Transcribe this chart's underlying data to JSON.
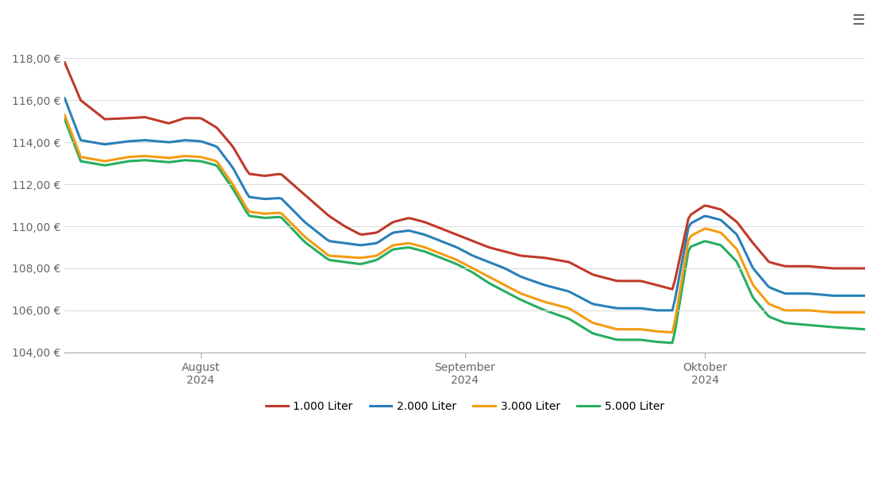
{
  "colors": {
    "1000": "#c0392b",
    "2000": "#2980b9",
    "3000": "#f39c12",
    "5000": "#27ae60"
  },
  "legend_labels": [
    "1.000 Liter",
    "2.000 Liter",
    "3.000 Liter",
    "5.000 Liter"
  ],
  "ylim": [
    104,
    119
  ],
  "yticks": [
    104,
    106,
    108,
    110,
    112,
    114,
    116,
    118
  ],
  "xtick_labels": [
    "August\n2024",
    "September\n2024",
    "Oktober\n2024"
  ],
  "xtick_positions": [
    0.17,
    0.5,
    0.8
  ],
  "background_color": "#ffffff",
  "grid_color": "#dddddd",
  "axis_color": "#aaaaaa",
  "line_width": 2.2,
  "series_1000": {
    "px": [
      0.0,
      0.02,
      0.05,
      0.08,
      0.1,
      0.13,
      0.15,
      0.17,
      0.19,
      0.21,
      0.23,
      0.25,
      0.27,
      0.3,
      0.33,
      0.35,
      0.37,
      0.39,
      0.41,
      0.43,
      0.45,
      0.47,
      0.49,
      0.51,
      0.53,
      0.55,
      0.57,
      0.6,
      0.63,
      0.66,
      0.69,
      0.72,
      0.74,
      0.76,
      0.78,
      0.8,
      0.82,
      0.84,
      0.86,
      0.88,
      0.9,
      0.93,
      0.96,
      1.0
    ],
    "py": [
      117.8,
      116.0,
      115.1,
      115.15,
      115.2,
      114.9,
      115.15,
      115.15,
      114.7,
      113.8,
      112.5,
      112.4,
      112.5,
      111.5,
      110.5,
      110.0,
      109.6,
      109.7,
      110.2,
      110.4,
      110.2,
      109.9,
      109.6,
      109.3,
      109.0,
      108.8,
      108.6,
      108.5,
      108.3,
      107.7,
      107.4,
      107.4,
      107.2,
      107.0,
      110.5,
      111.0,
      110.8,
      110.2,
      109.2,
      108.3,
      108.1,
      108.1,
      108.0,
      108.0
    ]
  },
  "series_2000": {
    "px": [
      0.0,
      0.02,
      0.05,
      0.08,
      0.1,
      0.13,
      0.15,
      0.17,
      0.19,
      0.21,
      0.23,
      0.25,
      0.27,
      0.3,
      0.33,
      0.35,
      0.37,
      0.39,
      0.41,
      0.43,
      0.45,
      0.47,
      0.49,
      0.51,
      0.53,
      0.55,
      0.57,
      0.6,
      0.63,
      0.66,
      0.69,
      0.72,
      0.74,
      0.76,
      0.78,
      0.8,
      0.82,
      0.84,
      0.86,
      0.88,
      0.9,
      0.93,
      0.96,
      1.0
    ],
    "py": [
      116.1,
      114.1,
      113.9,
      114.05,
      114.1,
      114.0,
      114.1,
      114.05,
      113.8,
      112.8,
      111.4,
      111.3,
      111.35,
      110.2,
      109.3,
      109.2,
      109.1,
      109.2,
      109.7,
      109.8,
      109.6,
      109.3,
      109.0,
      108.6,
      108.3,
      108.0,
      107.6,
      107.2,
      106.9,
      106.3,
      106.1,
      106.1,
      106.0,
      106.0,
      110.1,
      110.5,
      110.3,
      109.6,
      108.0,
      107.1,
      106.8,
      106.8,
      106.7,
      106.7
    ]
  },
  "series_3000": {
    "px": [
      0.0,
      0.02,
      0.05,
      0.08,
      0.1,
      0.13,
      0.15,
      0.17,
      0.19,
      0.21,
      0.23,
      0.25,
      0.27,
      0.3,
      0.33,
      0.35,
      0.37,
      0.39,
      0.41,
      0.43,
      0.45,
      0.47,
      0.49,
      0.51,
      0.53,
      0.55,
      0.57,
      0.6,
      0.63,
      0.66,
      0.69,
      0.72,
      0.74,
      0.76,
      0.78,
      0.8,
      0.82,
      0.84,
      0.86,
      0.88,
      0.9,
      0.93,
      0.96,
      1.0
    ],
    "py": [
      115.3,
      113.3,
      113.1,
      113.3,
      113.35,
      113.25,
      113.35,
      113.3,
      113.1,
      112.0,
      110.7,
      110.6,
      110.65,
      109.5,
      108.6,
      108.55,
      108.5,
      108.6,
      109.1,
      109.2,
      109.0,
      108.7,
      108.4,
      108.0,
      107.6,
      107.2,
      106.8,
      106.4,
      106.1,
      105.4,
      105.1,
      105.1,
      105.0,
      104.95,
      109.5,
      109.9,
      109.7,
      108.9,
      107.2,
      106.3,
      106.0,
      106.0,
      105.9,
      105.9
    ]
  },
  "series_5000": {
    "px": [
      0.0,
      0.02,
      0.05,
      0.08,
      0.1,
      0.13,
      0.15,
      0.17,
      0.19,
      0.21,
      0.23,
      0.25,
      0.27,
      0.3,
      0.33,
      0.35,
      0.37,
      0.39,
      0.41,
      0.43,
      0.45,
      0.47,
      0.49,
      0.51,
      0.53,
      0.55,
      0.57,
      0.6,
      0.63,
      0.66,
      0.69,
      0.72,
      0.74,
      0.76,
      0.78,
      0.8,
      0.82,
      0.84,
      0.86,
      0.88,
      0.9,
      0.93,
      0.96,
      1.0
    ],
    "py": [
      115.1,
      113.1,
      112.9,
      113.1,
      113.15,
      113.05,
      113.15,
      113.1,
      112.9,
      111.8,
      110.5,
      110.4,
      110.45,
      109.25,
      108.4,
      108.3,
      108.2,
      108.4,
      108.9,
      109.0,
      108.8,
      108.5,
      108.2,
      107.8,
      107.3,
      106.9,
      106.5,
      106.0,
      105.6,
      104.9,
      104.6,
      104.6,
      104.5,
      104.45,
      109.0,
      109.3,
      109.1,
      108.3,
      106.6,
      105.7,
      105.4,
      105.3,
      105.2,
      105.1
    ]
  }
}
